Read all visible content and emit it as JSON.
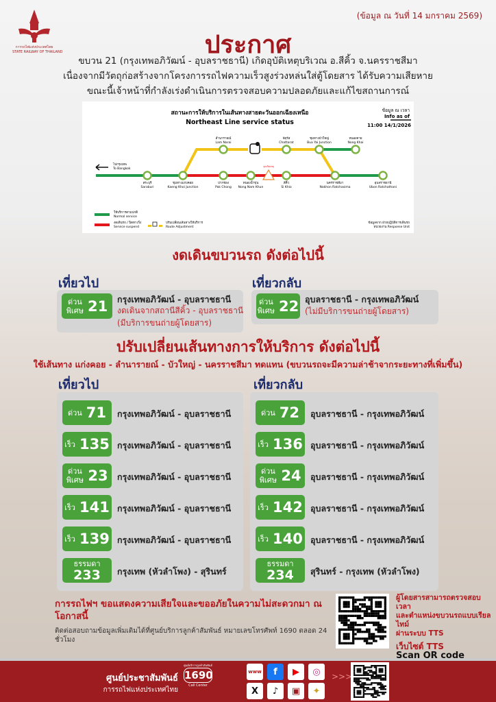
{
  "header": {
    "logo_text_th": "การรถไฟแห่งประเทศไทย",
    "logo_text_en": "STATE RAILWAY OF THAILAND",
    "date_note": "(ข้อมูล ณ วันที่ 14 มกราคม 2569)",
    "title": "ประกาศ",
    "body": [
      "ขบวน 21 (กรุงเทพอภิวัฒน์ - อุบลราชธานี) เกิดอุบัติเหตุบริเวณ อ.สีคิ้ว จ.นครราชสีมา",
      "เนื่องจากมีวัตถุก่อสร้างจากโครงการรถไฟความเร็วสูงร่วงหล่นใส่ตู้โดยสาร ได้รับความเสียหาย",
      "ขณะนี้เจ้าหน้าที่กำลังเร่งดำเนินการตรวจสอบความปลอดภัยและแก้ไขสถานการณ์"
    ]
  },
  "map": {
    "title_th": "สถานะการให้บริการในเส้นทางสายตะวันออกเฉียงเหนือ",
    "title_en": "Northeast Line service status",
    "info_th": "ข้อมูล ณ เวลา",
    "info_en": "Info as of",
    "info_time": "11:00 14/1/2026",
    "to_bangkok_th": "ไปกรุงเทพ",
    "to_bangkok_en": "To Bangkok",
    "stations_main": [
      {
        "th": "สระบุรี",
        "en": "Saraburi"
      },
      {
        "th": "ชุมทางแก่งคอย",
        "en": "Kaeng Khoi Junction"
      },
      {
        "th": "ปากช่อง",
        "en": "Pak Chong"
      },
      {
        "th": "หนองน้ำขุ่น",
        "en": "Nong Nam Khun"
      },
      {
        "th": "สีคิ้ว",
        "en": "Si Khio"
      },
      {
        "th": "นครราชสีมา",
        "en": "Nakhon Ratchasima"
      },
      {
        "th": "อุบลราชธานี",
        "en": "Ubon Ratchathani"
      }
    ],
    "stations_top": [
      {
        "th": "ลำนารายณ์",
        "en": "Lam Narai"
      },
      {
        "th": "จัตุรัส",
        "en": "Chattarat"
      },
      {
        "th": "ชุมทางบัวใหญ่",
        "en": "Bua Yai Junction"
      },
      {
        "th": "หนองคาย",
        "en": "Nong Khai"
      }
    ],
    "accident_label": "จุดเกิดเหตุ",
    "legend": [
      {
        "th": "ให้บริการตามปกติ",
        "en": "Normal service",
        "color": "#1e9a4a"
      },
      {
        "th": "งดเดินรถ / ปิดทางวิ่ง",
        "en": "Service suspend",
        "color": "#e3161b"
      },
      {
        "th": "ปรับเปลี่ยนเส้นทางให้บริการ",
        "en": "Route Adjustment",
        "color": "#f2c418"
      }
    ],
    "source_th": "ข้อมูลจาก ฝ่ายปฏิบัติการเดินรถ",
    "source_en": "หน่วยงาน Response Unit"
  },
  "cancelled": {
    "title": "งดเดินขบวนรถ ดังต่อไปนี้",
    "outbound_label": "เที่ยวไป",
    "return_label": "เที่ยวกลับ",
    "outbound": {
      "type_line1": "ด่วน",
      "type_line2": "พิเศษ",
      "number": "21",
      "route": "กรุงเทพอภิวัฒน์ - อุบลราชธานี",
      "note1": "งดเดินจากสถานีสีคิ้ว - อุบลราชธานี",
      "note2": "(มีบริการขนถ่ายผู้โดยสาร)"
    },
    "return": {
      "type_line1": "ด่วน",
      "type_line2": "พิเศษ",
      "number": "22",
      "route": "อุบลราชธานี - กรุงเทพอภิวัฒน์",
      "note1": "(ไม่มีบริการขนถ่ายผู้โดยสาร)"
    }
  },
  "reroute": {
    "title": "ปรับเปลี่ยนเส้นทางการให้บริการ ดังต่อไปนี้",
    "subtitle": "ใช้เส้นทาง แก่งคอย - ลำนารายณ์ - บัวใหญ่ - นครราชสีมา ทดแทน (ขบวนรถจะมีความล่าช้าจากระยะทางที่เพิ่มขึ้น)",
    "outbound_label": "เที่ยวไป",
    "return_label": "เที่ยวกลับ",
    "outbound": [
      {
        "type": "ด่วน",
        "number": "71",
        "route": "กรุงเทพอภิวัฒน์ - อุบลราชธานี"
      },
      {
        "type": "เร็ว",
        "number": "135",
        "route": "กรุงเทพอภิวัฒน์ - อุบลราชธานี"
      },
      {
        "type": "ด่วนพิเศษ",
        "number": "23",
        "route": "กรุงเทพอภิวัฒน์ - อุบลราชธานี"
      },
      {
        "type": "เร็ว",
        "number": "141",
        "route": "กรุงเทพอภิวัฒน์ - อุบลราชธานี"
      },
      {
        "type": "เร็ว",
        "number": "139",
        "route": "กรุงเทพอภิวัฒน์ - อุบลราชธานี"
      },
      {
        "type": "ธรรมดา",
        "number": "233",
        "route": "กรุงเทพ (หัวลำโพง) - สุรินทร์"
      }
    ],
    "return": [
      {
        "type": "ด่วน",
        "number": "72",
        "route": "อุบลราชธานี - กรุงเทพอภิวัฒน์"
      },
      {
        "type": "เร็ว",
        "number": "136",
        "route": "อุบลราชธานี - กรุงเทพอภิวัฒน์"
      },
      {
        "type": "ด่วนพิเศษ",
        "number": "24",
        "route": "อุบลราชธานี - กรุงเทพอภิวัฒน์"
      },
      {
        "type": "เร็ว",
        "number": "142",
        "route": "อุบลราชธานี - กรุงเทพอภิวัฒน์"
      },
      {
        "type": "เร็ว",
        "number": "140",
        "route": "อุบลราชธานี - กรุงเทพอภิวัฒน์"
      },
      {
        "type": "ธรรมดา",
        "number": "234",
        "route": "สุรินทร์ - กรุงเทพ (หัวลำโพง)"
      }
    ]
  },
  "apology": "การรถไฟฯ ขอแสดงความเสียใจและขออภัยในความไม่สะดวกมา ณ โอกาสนี้",
  "contact": "ติดต่อสอบถามข้อมูลเพิ่มเติมได้ที่ศูนย์บริการลูกค้าสัมพันธ์ หมายเลขโทรศัพท์ 1690 ตลอด 24 ชั่วโมง",
  "tts": {
    "line1": "ผู้โดยสารสามารถตรวจสอบเวลา",
    "line2": "และตำแหน่งขบวนรถแบบเรียลไทม์",
    "line3": "ผ่านระบบ TTS",
    "website": "เว็บไซต์ TTS",
    "scan": "Scan QR code"
  },
  "footer": {
    "center_th": "ศูนย์ประชาสัมพันธ์",
    "org_th": "การรถไฟแห่งประเทศไทย",
    "call_label": "ศูนย์บริการลูกค้าสัมพันธ์",
    "call_number": "1690",
    "call_center": "Call Center",
    "arrows": ">>>",
    "social_icons": [
      "www-icon",
      "facebook-icon",
      "youtube-icon",
      "instagram-icon",
      "x-icon",
      "tiktok-icon",
      "train-app-icon",
      "d-ticket-icon"
    ]
  },
  "colors": {
    "brand_red": "#9c1c20",
    "heading_red": "#b3171c",
    "navy": "#1b2a6b",
    "badge_green": "#4aa33a"
  }
}
